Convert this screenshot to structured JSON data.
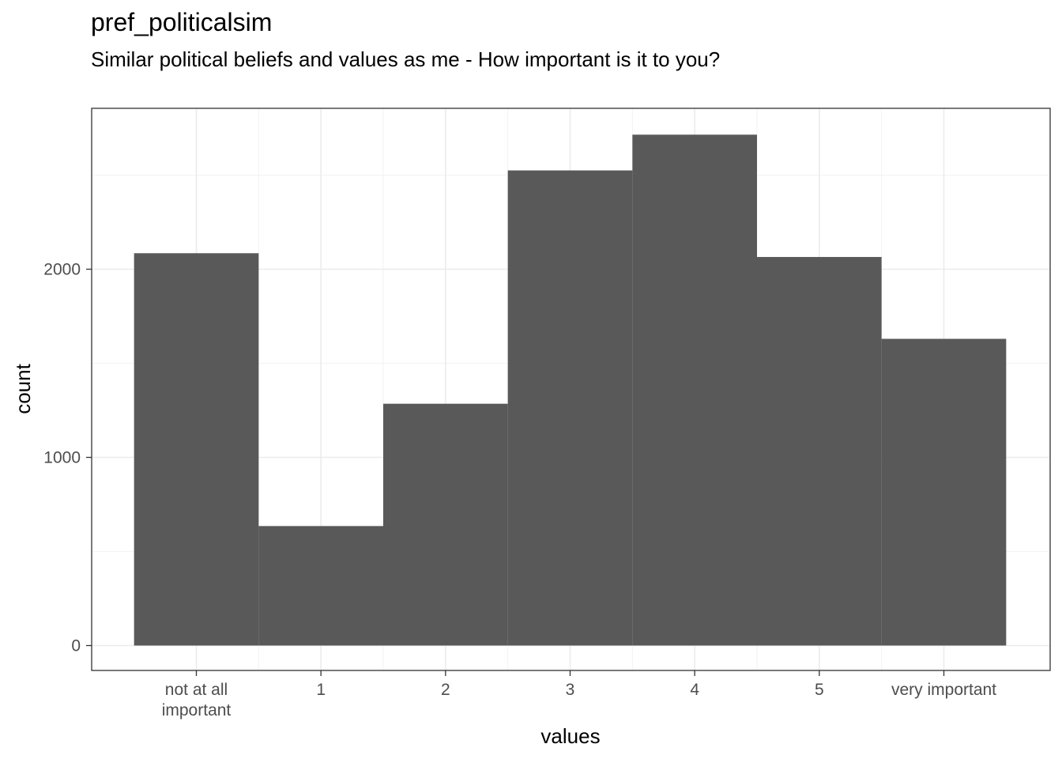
{
  "chart_data": {
    "type": "bar",
    "title": "pref_politicalsim",
    "subtitle": "Similar political beliefs and values as me - How important is it to you?",
    "xlabel": "values",
    "ylabel": "count",
    "categories": [
      "not at all important",
      "1",
      "2",
      "3",
      "4",
      "5",
      "very important"
    ],
    "values": [
      2085,
      635,
      1285,
      2525,
      2715,
      2065,
      1630
    ],
    "ylim": [
      0,
      2810
    ],
    "yticks": [
      0,
      1000,
      2000
    ],
    "grid": true,
    "legend": "none",
    "bar_color": "#595959"
  }
}
